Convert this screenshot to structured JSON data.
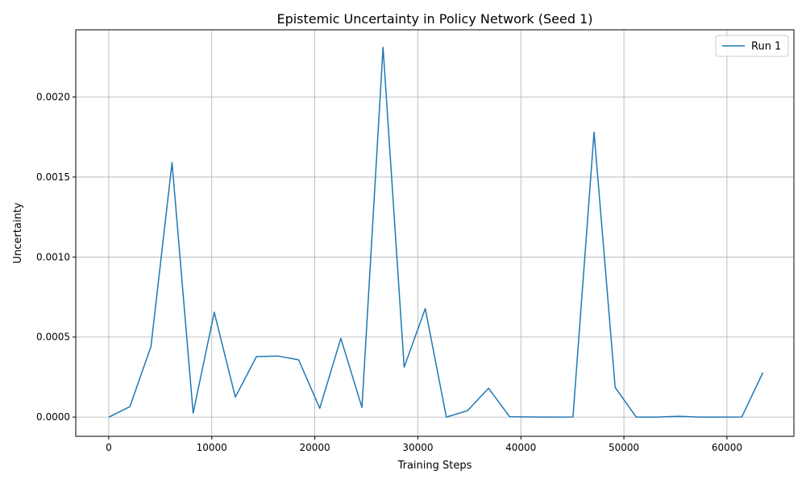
{
  "chart_data": {
    "type": "line",
    "title": "Epistemic Uncertainty in Policy Network (Seed 1)",
    "xlabel": "Training Steps",
    "ylabel": "Uncertainty",
    "xlim": [
      -3200,
      66500
    ],
    "ylim": [
      -0.00012,
      0.00242
    ],
    "xticks": [
      0,
      10000,
      20000,
      30000,
      40000,
      50000,
      60000
    ],
    "xtick_labels": [
      "0",
      "10000",
      "20000",
      "30000",
      "40000",
      "50000",
      "60000"
    ],
    "yticks": [
      0,
      0.0005,
      0.001,
      0.0015,
      0.002
    ],
    "ytick_labels": [
      "0.0000",
      "0.0005",
      "0.0010",
      "0.0015",
      "0.0020"
    ],
    "grid": true,
    "legend_position": "top-right",
    "series": [
      {
        "name": "Run 1",
        "color": "#1f77b4",
        "x": [
          0,
          2048,
          4096,
          6144,
          8192,
          10240,
          12288,
          14336,
          16384,
          18432,
          20480,
          22528,
          24576,
          26624,
          28672,
          30720,
          32768,
          34816,
          36864,
          38912,
          40960,
          43008,
          45056,
          47104,
          49152,
          51200,
          53248,
          55296,
          57344,
          59392,
          61440,
          63488
        ],
        "y": [
          0.0,
          6.5e-05,
          0.00044,
          0.00159,
          2.5e-05,
          0.000655,
          0.000125,
          0.000378,
          0.000382,
          0.000358,
          5.5e-05,
          0.000492,
          6e-05,
          0.00231,
          0.000312,
          0.000678,
          0.0,
          4e-05,
          0.00018,
          2e-06,
          1e-06,
          0.0,
          1e-06,
          0.00178,
          0.000185,
          0.0,
          0.0,
          5e-06,
          0.0,
          0.0,
          1e-06,
          0.000278
        ]
      }
    ]
  }
}
